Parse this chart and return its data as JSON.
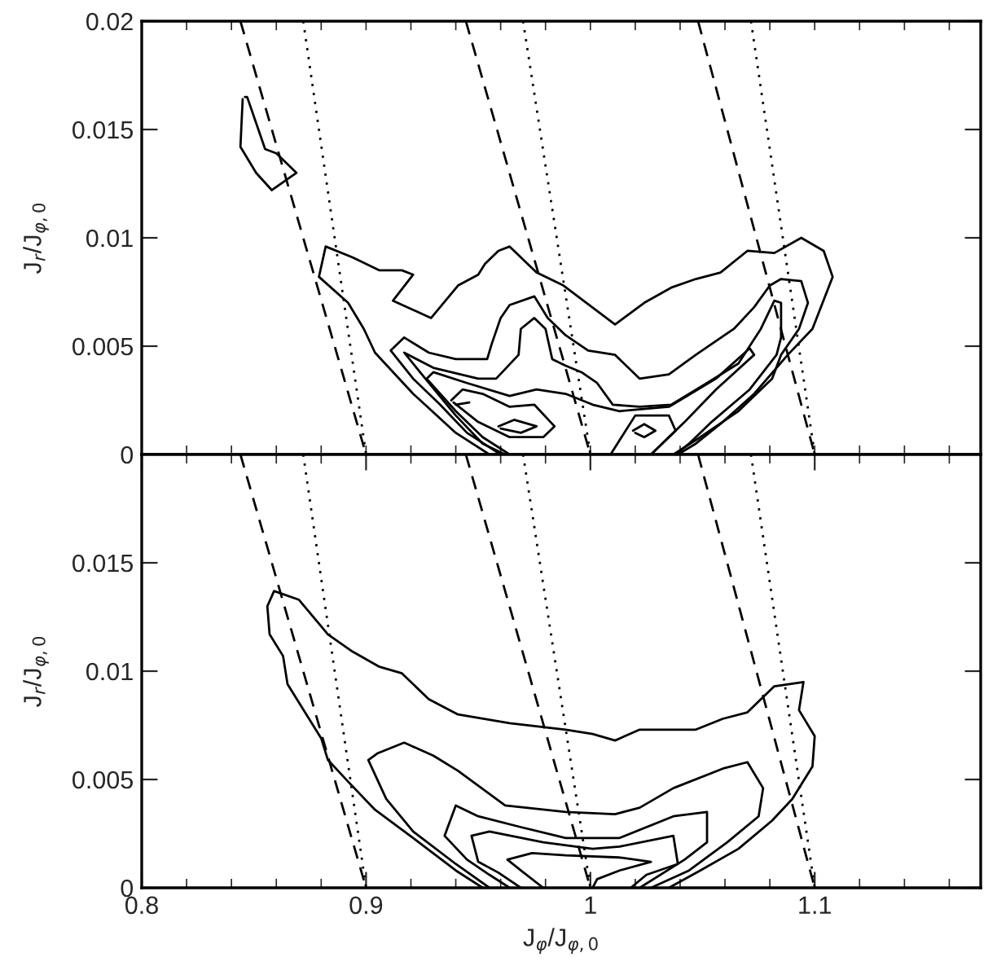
{
  "chart_data": [
    {
      "type": "line",
      "ylabel": "J$_{r}$/J$_{φ,0}$",
      "xlim": [
        0.8,
        1.174
      ],
      "ylim": [
        0,
        0.02
      ],
      "tick_labels": "y",
      "grid": false,
      "marker": "none",
      "xticks": [
        {
          "value": 0.8,
          "label": null
        },
        {
          "value": 0.82,
          "label": null
        },
        {
          "value": 0.84,
          "label": null
        },
        {
          "value": 0.86,
          "label": null
        },
        {
          "value": 0.88,
          "label": null
        },
        {
          "value": 0.9,
          "label": null
        },
        {
          "value": 0.92,
          "label": null
        },
        {
          "value": 0.94,
          "label": null
        },
        {
          "value": 0.96,
          "label": null
        },
        {
          "value": 0.98,
          "label": null
        },
        {
          "value": 1.0,
          "label": null
        },
        {
          "value": 1.02,
          "label": null
        },
        {
          "value": 1.04,
          "label": null
        },
        {
          "value": 1.06,
          "label": null
        },
        {
          "value": 1.08,
          "label": null
        },
        {
          "value": 1.1,
          "label": null
        },
        {
          "value": 1.12,
          "label": null
        },
        {
          "value": 1.14,
          "label": null
        },
        {
          "value": 1.16,
          "label": null
        }
      ],
      "yticks": [
        0,
        0.005,
        0.01,
        0.015,
        0.02
      ],
      "series": [
        {
          "color": "#000000",
          "line_style": "solid",
          "x": [
            0.955,
            0.94,
            0.921,
            0.904,
            0.899,
            0.892,
            0.879,
            0.882,
            0.894,
            0.906,
            0.916,
            0.921,
            0.912,
            0.929,
            0.941,
            0.95,
            0.953,
            0.959,
            0.964,
            0.976,
            0.988,
            1.011,
            1.024,
            1.036,
            1.047,
            1.058,
            1.07,
            1.082,
            1.094,
            1.104,
            1.108,
            1.099,
            1.088,
            1.073,
            1.059,
            1.047,
            1.039
          ],
          "values": [
            0,
            0.001,
            0.0028,
            0.0047,
            0.0058,
            0.007,
            0.0082,
            0.0096,
            0.0091,
            0.0085,
            0.0085,
            0.0083,
            0.0071,
            0.0063,
            0.0078,
            0.0083,
            0.0088,
            0.0094,
            0.0096,
            0.0084,
            0.0078,
            0.006,
            0.007,
            0.0077,
            0.0081,
            0.0084,
            0.0094,
            0.0093,
            0.01,
            0.0094,
            0.0082,
            0.0058,
            0.0046,
            0.0028,
            0.0015,
            0.0005,
            0
          ]
        },
        {
          "color": "#000000",
          "line_style": "solid",
          "x": [
            0.846,
            0.847,
            0.855,
            0.86,
            0.869,
            0.858,
            0.851,
            0.844,
            0.845
          ],
          "values": [
            0.0165,
            0.0165,
            0.0141,
            0.0139,
            0.013,
            0.0122,
            0.013,
            0.0142,
            0.0164
          ]
        },
        {
          "color": "#000000",
          "line_style": "solid",
          "x": [
            0.96,
            0.945,
            0.933,
            0.921,
            0.911,
            0.917,
            0.928,
            0.94,
            0.954,
            0.956,
            0.96,
            0.964,
            0.975,
            0.981,
            0.989,
            0.999,
            1.011,
            1.022,
            1.035,
            1.047,
            1.064,
            1.073,
            1.08,
            1.085,
            1.094,
            1.097,
            1.093,
            1.085,
            1.081,
            1.066,
            1.049,
            1.037
          ],
          "values": [
            0,
            0.001,
            0.0023,
            0.0035,
            0.0048,
            0.0054,
            0.0047,
            0.0044,
            0.0044,
            0.0051,
            0.0063,
            0.0069,
            0.0073,
            0.0063,
            0.0055,
            0.0048,
            0.0046,
            0.0035,
            0.0037,
            0.0046,
            0.0058,
            0.0068,
            0.0078,
            0.0081,
            0.008,
            0.007,
            0.0058,
            0.0046,
            0.0035,
            0.002,
            0.0008,
            0
          ]
        },
        {
          "color": "#000000",
          "line_style": "solid",
          "x": [
            0.962,
            0.952,
            0.94,
            0.928,
            0.917,
            0.93,
            0.95,
            0.958,
            0.968,
            0.969,
            0.975,
            0.98,
            0.983,
            0.989,
            0.996,
            1.003,
            1.01,
            1.022,
            1.036,
            1.052,
            1.066,
            1.076,
            1.082,
            1.085,
            1.085,
            1.083,
            1.071,
            1.054,
            1.044,
            1.038
          ],
          "values": [
            0,
            0.0005,
            0.0018,
            0.0033,
            0.0047,
            0.004,
            0.0035,
            0.0035,
            0.0046,
            0.0058,
            0.0063,
            0.0058,
            0.0044,
            0.0041,
            0.0038,
            0.0033,
            0.0023,
            0.0022,
            0.0023,
            0.0033,
            0.0042,
            0.0058,
            0.0071,
            0.007,
            0.0054,
            0.0046,
            0.003,
            0.0015,
            0.0005,
            0
          ]
        },
        {
          "color": "#000000",
          "line_style": "solid",
          "x": [
            0.964,
            0.952,
            0.94,
            0.927,
            0.93,
            0.945,
            0.964,
            0.976,
            0.989,
            1.001,
            1.013,
            1.035,
            1.056,
            1.071,
            1.073,
            1.056,
            1.042,
            1.035,
            1.027
          ],
          "values": [
            0,
            0.0008,
            0.002,
            0.0035,
            0.0038,
            0.0033,
            0.0027,
            0.003,
            0.0028,
            0.0023,
            0.002,
            0.0022,
            0.0035,
            0.0049,
            0.0046,
            0.003,
            0.0015,
            0.0008,
            0
          ]
        },
        {
          "color": "#000000",
          "line_style": "solid",
          "x": [
            0.938,
            0.943,
            0.952,
            0.964,
            0.975,
            0.984,
            0.979,
            0.964,
            0.95,
            0.939
          ],
          "values": [
            0.0025,
            0.003,
            0.0028,
            0.0022,
            0.0023,
            0.0013,
            0.0008,
            0.0008,
            0.0015,
            0.0024
          ]
        },
        {
          "color": "#000000",
          "line_style": "solid",
          "x": [
            0.94,
            0.946
          ],
          "values": [
            0.0023,
            0.0024
          ]
        },
        {
          "color": "#000000",
          "line_style": "solid",
          "x": [
            0.959,
            0.966,
            0.976,
            0.969,
            0.96
          ],
          "values": [
            0.0013,
            0.0016,
            0.0013,
            0.001,
            0.0012
          ]
        },
        {
          "color": "#000000",
          "line_style": "solid",
          "x": [
            1.009,
            1.02,
            1.035,
            1.038,
            1.027
          ],
          "values": [
            0,
            0.0018,
            0.0018,
            0.0011,
            0
          ]
        },
        {
          "color": "#000000",
          "line_style": "solid",
          "x": [
            1.019,
            1.024,
            1.029,
            1.024,
            1.02
          ],
          "values": [
            0.0011,
            0.0014,
            0.0011,
            0.0008,
            0.001
          ]
        },
        {
          "color": "#000000",
          "line_style": "dashed",
          "x": [
            0.844,
            0.9
          ],
          "values": [
            0.02,
            0
          ]
        },
        {
          "color": "#000000",
          "line_style": "dotted",
          "x": [
            0.872,
            0.9
          ],
          "values": [
            0.02,
            0
          ]
        },
        {
          "color": "#000000",
          "line_style": "dashed",
          "x": [
            0.9445,
            1.0
          ],
          "values": [
            0.02,
            0
          ]
        },
        {
          "color": "#000000",
          "line_style": "dotted",
          "x": [
            0.97,
            1.0
          ],
          "values": [
            0.02,
            0
          ]
        },
        {
          "color": "#000000",
          "line_style": "dashed",
          "x": [
            1.048,
            1.1
          ],
          "values": [
            0.02,
            0
          ]
        },
        {
          "color": "#000000",
          "line_style": "dotted",
          "x": [
            1.0716,
            1.1
          ],
          "values": [
            0.02,
            0
          ]
        }
      ]
    },
    {
      "type": "line",
      "xlabel": "J$_{φ}$/J$_{φ,0}$",
      "ylabel": "J$_{r}$/J$_{φ,0}$",
      "xlim": [
        0.8,
        1.174
      ],
      "ylim": [
        0,
        0.02
      ],
      "grid": false,
      "marker": "none",
      "xticks": [
        0.8,
        {
          "value": 0.82,
          "label": null
        },
        {
          "value": 0.84,
          "label": null
        },
        {
          "value": 0.86,
          "label": null
        },
        {
          "value": 0.88,
          "label": null
        },
        0.9,
        {
          "value": 0.92,
          "label": null
        },
        {
          "value": 0.94,
          "label": null
        },
        {
          "value": 0.96,
          "label": null
        },
        {
          "value": 0.98,
          "label": null
        },
        {
          "value": 1.0,
          "label": "1"
        },
        {
          "value": 1.02,
          "label": null
        },
        {
          "value": 1.04,
          "label": null
        },
        {
          "value": 1.06,
          "label": null
        },
        {
          "value": 1.08,
          "label": null
        },
        1.1,
        {
          "value": 1.12,
          "label": null
        },
        {
          "value": 1.14,
          "label": null
        },
        {
          "value": 1.16,
          "label": null
        }
      ],
      "yticks": [
        0,
        0.005,
        0.01,
        0.015
      ],
      "series": [
        {
          "color": "#000000",
          "line_style": "solid",
          "x": [
            0.952,
            0.94,
            0.921,
            0.904,
            0.892,
            0.883,
            0.88,
            0.865,
            0.863,
            0.857,
            0.856,
            0.859,
            0.87,
            0.883,
            0.894,
            0.906,
            0.916,
            0.928,
            0.941,
            0.964,
            0.989,
            1.001,
            1.011,
            1.022,
            1.035,
            1.047,
            1.059,
            1.07,
            1.082,
            1.095,
            1.093,
            1.1,
            1.099,
            1.09,
            1.081,
            1.066,
            1.049,
            1.035
          ],
          "values": [
            0,
            0.0008,
            0.0023,
            0.0036,
            0.0049,
            0.0059,
            0.0069,
            0.0094,
            0.0107,
            0.0117,
            0.013,
            0.0137,
            0.0133,
            0.0117,
            0.0109,
            0.0102,
            0.0099,
            0.0087,
            0.008,
            0.0076,
            0.0073,
            0.0071,
            0.0068,
            0.0073,
            0.0073,
            0.0073,
            0.0078,
            0.0081,
            0.0093,
            0.0095,
            0.0082,
            0.007,
            0.0056,
            0.0041,
            0.0031,
            0.0018,
            0.0008,
            0
          ]
        },
        {
          "color": "#000000",
          "line_style": "solid",
          "x": [
            0.955,
            0.94,
            0.921,
            0.909,
            0.901,
            0.905,
            0.917,
            0.93,
            0.941,
            0.962,
            0.989,
            1.011,
            1.022,
            1.037,
            1.059,
            1.07,
            1.077,
            1.075,
            1.061,
            1.044,
            1.027
          ],
          "values": [
            0,
            0.0011,
            0.0026,
            0.0041,
            0.0059,
            0.0062,
            0.0067,
            0.0061,
            0.0054,
            0.0038,
            0.0035,
            0.0034,
            0.0037,
            0.0046,
            0.0055,
            0.0058,
            0.0046,
            0.0033,
            0.0021,
            0.0008,
            0
          ]
        },
        {
          "color": "#000000",
          "line_style": "solid",
          "x": [
            0.964,
            0.955,
            0.945,
            0.935,
            0.94,
            0.95,
            0.969,
            0.989,
            1.013,
            1.037,
            1.052,
            1.052,
            1.042,
            1.022
          ],
          "values": [
            0,
            0.0006,
            0.0013,
            0.0024,
            0.0038,
            0.0033,
            0.0028,
            0.0023,
            0.0023,
            0.0033,
            0.0035,
            0.0021,
            0.0013,
            0
          ]
        },
        {
          "color": "#000000",
          "line_style": "solid",
          "x": [
            0.969,
            0.959,
            0.95,
            0.947,
            0.955,
            0.979,
            1.001,
            1.013,
            1.037,
            1.039,
            1.025,
            1.018
          ],
          "values": [
            0,
            0.0007,
            0.0012,
            0.0024,
            0.0026,
            0.0021,
            0.0018,
            0.0019,
            0.0024,
            0.0011,
            0.0006,
            0
          ]
        },
        {
          "color": "#000000",
          "line_style": "solid",
          "x": [
            0.979,
            0.969,
            0.963,
            0.974,
            0.989,
            1.013,
            1.027,
            1.013,
            1.003,
            1.001
          ],
          "values": [
            0,
            0.0008,
            0.0013,
            0.0016,
            0.0015,
            0.0014,
            0.0012,
            0.0008,
            0.0004,
            0
          ]
        },
        {
          "color": "#000000",
          "line_style": "dashed",
          "x": [
            0.844,
            0.9
          ],
          "values": [
            0.02,
            0
          ]
        },
        {
          "color": "#000000",
          "line_style": "dotted",
          "x": [
            0.872,
            0.9
          ],
          "values": [
            0.02,
            0
          ]
        },
        {
          "color": "#000000",
          "line_style": "dashed",
          "x": [
            0.9445,
            1.0
          ],
          "values": [
            0.02,
            0
          ]
        },
        {
          "color": "#000000",
          "line_style": "dotted",
          "x": [
            0.97,
            1.0
          ],
          "values": [
            0.02,
            0
          ]
        },
        {
          "color": "#000000",
          "line_style": "dashed",
          "x": [
            1.048,
            1.1
          ],
          "values": [
            0.02,
            0
          ]
        },
        {
          "color": "#000000",
          "line_style": "dotted",
          "x": [
            1.0716,
            1.1
          ],
          "values": [
            0.02,
            0
          ]
        }
      ]
    }
  ]
}
